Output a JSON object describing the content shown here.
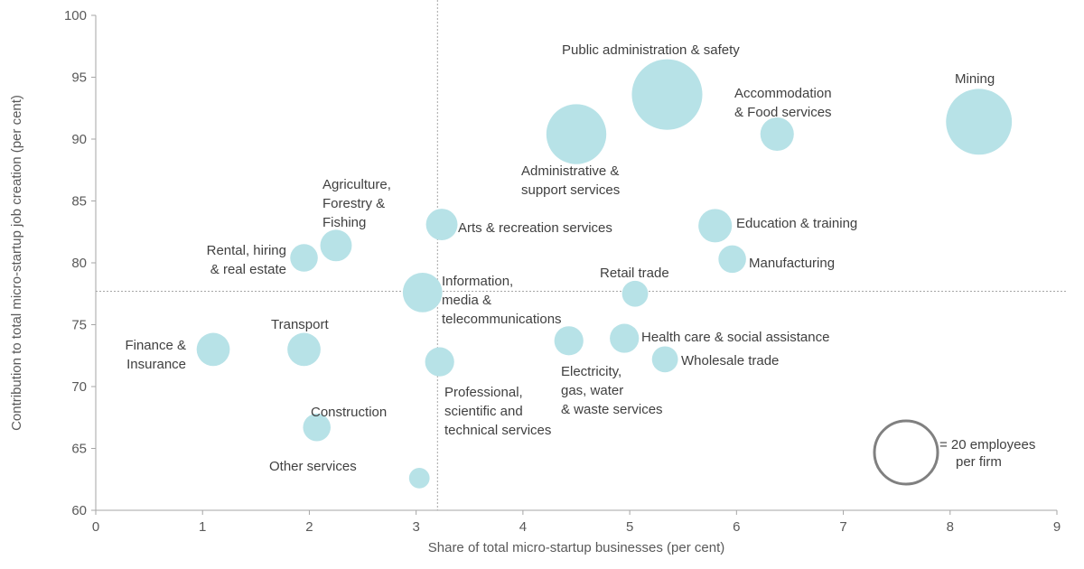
{
  "chart_data": {
    "type": "bubble",
    "title": "",
    "xlabel": "Share of total micro-startup businesses (per cent)",
    "ylabel": "Contribution to total micro-startup job creation (per cent)",
    "xlim": [
      0,
      9
    ],
    "ylim": [
      60,
      100
    ],
    "xticks": [
      "0",
      "1",
      "2",
      "3",
      "4",
      "5",
      "6",
      "7",
      "8",
      "9"
    ],
    "yticks": [
      "60",
      "65",
      "70",
      "75",
      "80",
      "85",
      "90",
      "95",
      "100"
    ],
    "reference_lines": {
      "x": 3.2,
      "y": 77.7
    },
    "bubble_color": "#b7e2e7",
    "points": [
      {
        "name": "Public administration & safety",
        "lines": [
          "Public administration & safety"
        ],
        "x": 5.35,
        "y": 93.6,
        "size": 23.5
      },
      {
        "name": "Mining",
        "lines": [
          "Mining"
        ],
        "x": 8.27,
        "y": 91.4,
        "size": 20.5
      },
      {
        "name": "Administrative & support services",
        "lines": [
          "Administrative &",
          "support services"
        ],
        "x": 4.5,
        "y": 90.4,
        "size": 17.0
      },
      {
        "name": "Accommodation & Food services",
        "lines": [
          "Accommodation",
          "& Food services"
        ],
        "x": 6.38,
        "y": 90.4,
        "size": 5.3
      },
      {
        "name": "Agriculture, Forestry & Fishing",
        "lines": [
          "Agriculture,",
          "Forestry &",
          "Fishing"
        ],
        "x": 2.25,
        "y": 81.4,
        "size": 4.7
      },
      {
        "name": "Arts & recreation services",
        "lines": [
          "Arts & recreation services"
        ],
        "x": 3.24,
        "y": 83.1,
        "size": 4.7
      },
      {
        "name": "Education & training",
        "lines": [
          "Education & training"
        ],
        "x": 5.8,
        "y": 83.0,
        "size": 5.3
      },
      {
        "name": "Rental, hiring & real estate",
        "lines": [
          "Rental, hiring",
          "& real estate"
        ],
        "x": 1.95,
        "y": 80.4,
        "size": 3.6
      },
      {
        "name": "Manufacturing",
        "lines": [
          "Manufacturing"
        ],
        "x": 5.96,
        "y": 80.3,
        "size": 3.6
      },
      {
        "name": "Information, media & telecommunications",
        "lines": [
          "Information,",
          "media &",
          "telecommunications"
        ],
        "x": 3.06,
        "y": 77.6,
        "size": 7.4
      },
      {
        "name": "Retail trade",
        "lines": [
          "Retail trade"
        ],
        "x": 5.05,
        "y": 77.5,
        "size": 3.2
      },
      {
        "name": "Finance & Insurance",
        "lines": [
          "Finance &",
          "Insurance"
        ],
        "x": 1.1,
        "y": 73.0,
        "size": 5.2
      },
      {
        "name": "Transport",
        "lines": [
          "Transport"
        ],
        "x": 1.95,
        "y": 73.0,
        "size": 5.2
      },
      {
        "name": "Electricity, gas, water & waste services",
        "lines": [
          "Electricity,",
          "gas, water",
          "& waste services"
        ],
        "x": 4.43,
        "y": 73.7,
        "size": 4.0
      },
      {
        "name": "Health care & social assistance",
        "lines": [
          "Health care & social assistance"
        ],
        "x": 4.95,
        "y": 73.9,
        "size": 4.0
      },
      {
        "name": "Wholesale trade",
        "lines": [
          "Wholesale trade"
        ],
        "x": 5.33,
        "y": 72.2,
        "size": 3.2
      },
      {
        "name": "Professional, scientific and technical services",
        "lines": [
          "Professional,",
          "scientific and",
          "technical services"
        ],
        "x": 3.22,
        "y": 72.0,
        "size": 4.0
      },
      {
        "name": "Construction",
        "lines": [
          "Construction"
        ],
        "x": 2.07,
        "y": 66.7,
        "size": 3.6
      },
      {
        "name": "Other services",
        "lines": [
          "Other services"
        ],
        "x": 3.03,
        "y": 62.6,
        "size": 2.0
      }
    ],
    "legend": {
      "size": 20,
      "lines": [
        "= 20 employees",
        "per firm"
      ],
      "position": "bottom-right"
    }
  }
}
